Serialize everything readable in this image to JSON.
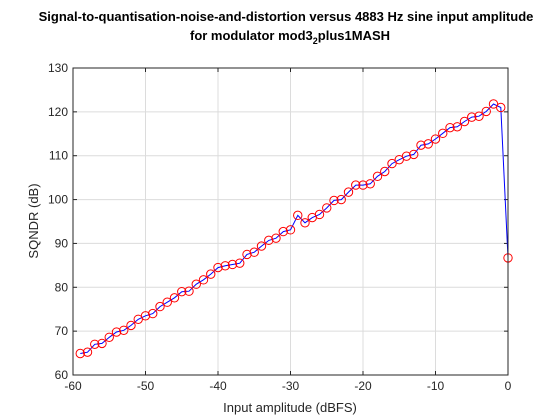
{
  "chart_data": {
    "type": "line",
    "title_line1": "Signal-to-quantisation-noise-and-distortion versus 4883 Hz sine input amplitude",
    "title_line2_prefix": "for modulator mod3",
    "title_line2_sub": "2",
    "title_line2_suffix": "plus1MASH",
    "xlabel": "Input amplitude (dBFS)",
    "ylabel": "SQNDR (dB)",
    "xlim": [
      -60,
      0
    ],
    "ylim": [
      60,
      130
    ],
    "xticks": [
      -60,
      -50,
      -40,
      -30,
      -20,
      -10,
      0
    ],
    "yticks": [
      60,
      70,
      80,
      90,
      100,
      110,
      120,
      130
    ],
    "grid": true,
    "line_color": "#0000ff",
    "marker_color": "#ff0000",
    "marker": "circle",
    "x": [
      -59,
      -58,
      -57,
      -56,
      -55,
      -54,
      -53,
      -52,
      -51,
      -50,
      -49,
      -48,
      -47,
      -46,
      -45,
      -44,
      -43,
      -42,
      -41,
      -40,
      -39,
      -38,
      -37,
      -36,
      -35,
      -34,
      -33,
      -32,
      -31,
      -30,
      -29,
      -28,
      -27,
      -26,
      -25,
      -24,
      -23,
      -22,
      -21,
      -20,
      -19,
      -18,
      -17,
      -16,
      -15,
      -14,
      -13,
      -12,
      -11,
      -10,
      -9,
      -8,
      -7,
      -6,
      -5,
      -4,
      -3,
      -2,
      -1,
      0
    ],
    "y": [
      64.9,
      65.2,
      67.0,
      67.2,
      68.6,
      69.8,
      70.2,
      71.3,
      72.7,
      73.5,
      74.0,
      75.6,
      76.6,
      77.6,
      79.0,
      79.1,
      80.7,
      81.7,
      83.0,
      84.5,
      84.9,
      85.2,
      85.5,
      87.5,
      88.0,
      89.4,
      90.7,
      91.2,
      92.7,
      93.1,
      96.4,
      94.7,
      95.9,
      96.6,
      98.1,
      99.8,
      100.0,
      101.7,
      103.3,
      103.3,
      103.6,
      105.3,
      106.4,
      108.2,
      109.1,
      109.9,
      110.3,
      112.4,
      112.7,
      113.8,
      115.1,
      116.4,
      116.6,
      117.8,
      118.8,
      119.0,
      120.1,
      121.8,
      121.0,
      86.7
    ]
  }
}
